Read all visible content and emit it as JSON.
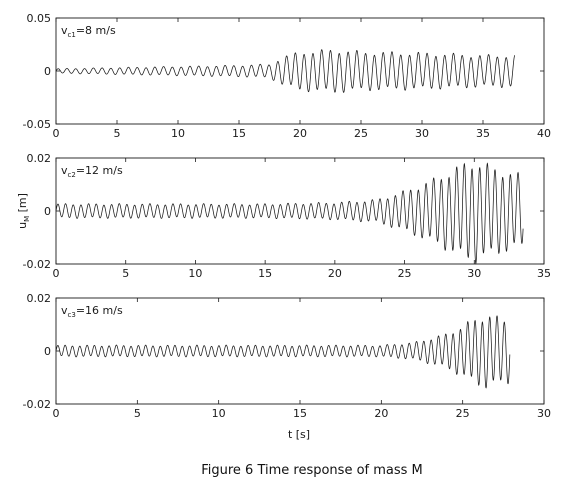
{
  "figure": {
    "caption": "Figure 6 Time response of mass M",
    "ylabel": "u",
    "ylabel_sub": "M",
    "ylabel_unit": " [m]",
    "xlabel": "t [s]"
  },
  "chart_data": [
    {
      "type": "line",
      "annotation": {
        "main": "v",
        "sub": "c1",
        "rest": "=8 m/s"
      },
      "xlim": [
        0,
        40
      ],
      "ylim": [
        -0.05,
        0.05
      ],
      "xticks": [
        "0",
        "5",
        "10",
        "15",
        "20",
        "25",
        "30",
        "35",
        "40"
      ],
      "yticks": [
        "-0.05",
        "0",
        "0.05"
      ],
      "grid": false,
      "series": [
        {
          "x": [
            0,
            5,
            10,
            15,
            17.5,
            18.5,
            20,
            23,
            25,
            30,
            35,
            37.6
          ],
          "amplitude": [
            0.002,
            0.003,
            0.004,
            0.005,
            0.006,
            0.012,
            0.017,
            0.019,
            0.017,
            0.016,
            0.014,
            0.014
          ],
          "period_s": 0.72,
          "t_end": 37.6
        }
      ]
    },
    {
      "type": "line",
      "annotation": {
        "main": "v",
        "sub": "c2",
        "rest": "=12 m/s"
      },
      "xlim": [
        0,
        35
      ],
      "ylim": [
        -0.02,
        0.02
      ],
      "xticks": [
        "0",
        "5",
        "10",
        "15",
        "20",
        "25",
        "30",
        "35"
      ],
      "yticks": [
        "-0.02",
        "0",
        "0.02"
      ],
      "grid": false,
      "series": [
        {
          "x": [
            0,
            5,
            10,
            15,
            20,
            23,
            25,
            27,
            29,
            30,
            31,
            33,
            33.5
          ],
          "amplitude": [
            0.0025,
            0.0025,
            0.0025,
            0.0025,
            0.003,
            0.004,
            0.007,
            0.011,
            0.016,
            0.018,
            0.016,
            0.013,
            0.013
          ],
          "period_s": 0.55,
          "t_end": 33.5
        }
      ]
    },
    {
      "type": "line",
      "annotation": {
        "main": "v",
        "sub": "c3",
        "rest": "=16 m/s"
      },
      "xlim": [
        0,
        30
      ],
      "ylim": [
        -0.02,
        0.02
      ],
      "xticks": [
        "0",
        "5",
        "10",
        "15",
        "20",
        "25",
        "30"
      ],
      "yticks": [
        "-0.02",
        "0",
        "0.02"
      ],
      "grid": false,
      "series": [
        {
          "x": [
            0,
            5,
            10,
            15,
            20,
            22,
            24,
            25,
            26,
            26.5,
            27,
            27.9
          ],
          "amplitude": [
            0.002,
            0.002,
            0.002,
            0.002,
            0.002,
            0.003,
            0.006,
            0.009,
            0.012,
            0.013,
            0.012,
            0.011
          ],
          "period_s": 0.45,
          "t_end": 27.9
        }
      ]
    }
  ]
}
